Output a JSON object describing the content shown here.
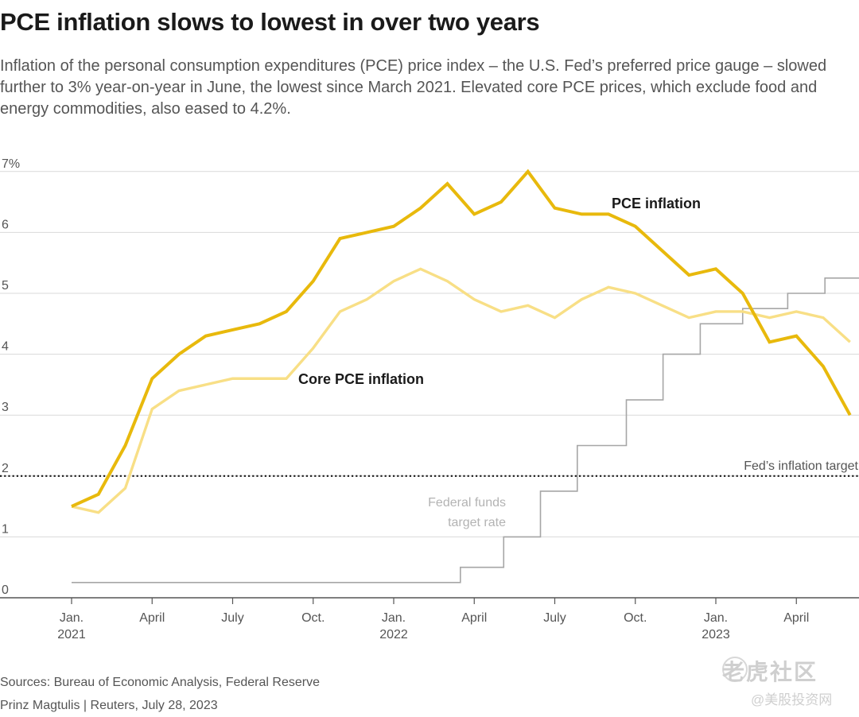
{
  "header": {
    "title": "PCE inflation slows to lowest in over two years",
    "subtitle": "Inflation of the personal consumption expenditures (PCE) price index – the U.S. Fed’s preferred price gauge – slowed further to 3% year-on-year in June, the lowest since March 2021. Elevated core PCE prices, which exclude food and energy commodities, also eased to 4.2%."
  },
  "chart_data": {
    "type": "line",
    "title": "PCE inflation slows to lowest in over two years",
    "ylim": [
      0,
      7
    ],
    "y_ticks": [
      {
        "value": 0,
        "label": "0"
      },
      {
        "value": 1,
        "label": "1"
      },
      {
        "value": 2,
        "label": "2"
      },
      {
        "value": 3,
        "label": "3"
      },
      {
        "value": 4,
        "label": "4"
      },
      {
        "value": 5,
        "label": "5"
      },
      {
        "value": 6,
        "label": "6"
      },
      {
        "value": 7,
        "label": "7%"
      }
    ],
    "x_ticks": [
      {
        "date": "2021-01",
        "label": "Jan.",
        "sublabel": "2021"
      },
      {
        "date": "2021-04",
        "label": "April",
        "sublabel": ""
      },
      {
        "date": "2021-07",
        "label": "July",
        "sublabel": ""
      },
      {
        "date": "2021-10",
        "label": "Oct.",
        "sublabel": ""
      },
      {
        "date": "2022-01",
        "label": "Jan.",
        "sublabel": "2022"
      },
      {
        "date": "2022-04",
        "label": "April",
        "sublabel": ""
      },
      {
        "date": "2022-07",
        "label": "July",
        "sublabel": ""
      },
      {
        "date": "2022-10",
        "label": "Oct.",
        "sublabel": ""
      },
      {
        "date": "2023-01",
        "label": "Jan.",
        "sublabel": "2023"
      },
      {
        "date": "2023-04",
        "label": "April",
        "sublabel": ""
      }
    ],
    "x": [
      "2021-01",
      "2021-02",
      "2021-03",
      "2021-04",
      "2021-05",
      "2021-06",
      "2021-07",
      "2021-08",
      "2021-09",
      "2021-10",
      "2021-11",
      "2021-12",
      "2022-01",
      "2022-02",
      "2022-03",
      "2022-04",
      "2022-05",
      "2022-06",
      "2022-07",
      "2022-08",
      "2022-09",
      "2022-10",
      "2022-11",
      "2022-12",
      "2023-01",
      "2023-02",
      "2023-03",
      "2023-04",
      "2023-05",
      "2023-06"
    ],
    "series": [
      {
        "name": "PCE inflation",
        "color": "#e8b90c",
        "values": [
          1.5,
          1.7,
          2.5,
          3.6,
          4.0,
          4.3,
          4.4,
          4.5,
          4.7,
          5.2,
          5.9,
          6.0,
          6.1,
          6.4,
          6.8,
          6.3,
          6.5,
          7.0,
          6.4,
          6.3,
          6.3,
          6.1,
          5.7,
          5.3,
          5.4,
          5.0,
          4.2,
          4.3,
          3.8,
          3.0
        ]
      },
      {
        "name": "Core PCE inflation",
        "color": "#f8df86",
        "values": [
          1.5,
          1.4,
          1.8,
          3.1,
          3.4,
          3.5,
          3.6,
          3.6,
          3.6,
          4.1,
          4.7,
          4.9,
          5.2,
          5.4,
          5.2,
          4.9,
          4.7,
          4.8,
          4.6,
          4.9,
          5.1,
          5.0,
          4.8,
          4.6,
          4.7,
          4.7,
          4.6,
          4.7,
          4.6,
          4.2
        ]
      }
    ],
    "fed_funds": {
      "label_lines": [
        "Federal funds",
        "target rate"
      ],
      "color": "#a6a6a6",
      "steps": [
        {
          "date": "2021-01-01",
          "rate": 0.25
        },
        {
          "date": "2022-03-16",
          "rate": 0.5
        },
        {
          "date": "2022-05-04",
          "rate": 1.0
        },
        {
          "date": "2022-06-15",
          "rate": 1.75
        },
        {
          "date": "2022-07-27",
          "rate": 2.5
        },
        {
          "date": "2022-09-21",
          "rate": 3.25
        },
        {
          "date": "2022-11-02",
          "rate": 4.0
        },
        {
          "date": "2022-12-14",
          "rate": 4.5
        },
        {
          "date": "2023-02-01",
          "rate": 4.75
        },
        {
          "date": "2023-03-22",
          "rate": 5.0
        },
        {
          "date": "2023-05-03",
          "rate": 5.25
        }
      ],
      "end_date": "2023-07-01"
    },
    "target": {
      "value": 2,
      "label": "Fed’s inflation target"
    },
    "grid": true
  },
  "footer": {
    "sources": "Sources: Bureau of Economic Analysis, Federal Reserve",
    "credit": "Prinz Magtulis | Reuters, July 28, 2023"
  },
  "watermark": {
    "main": "老虎社区",
    "sub": "@美股投资网"
  }
}
